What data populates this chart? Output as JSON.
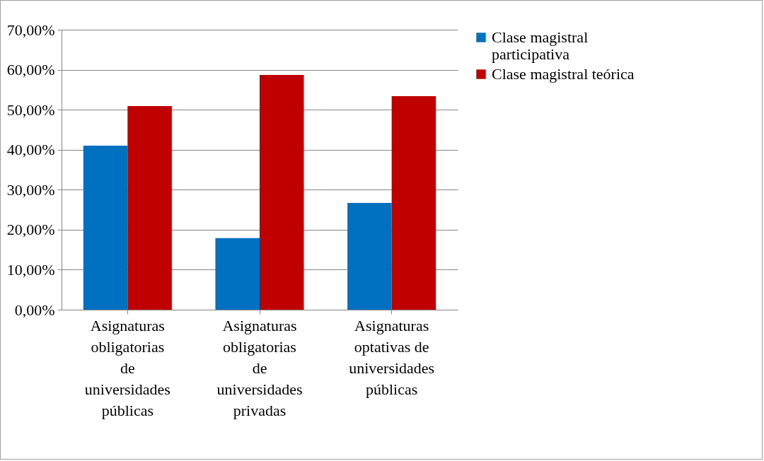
{
  "chart_data": {
    "type": "bar",
    "categories": [
      "Asignaturas obligatorias de universidades públicas",
      "Asignaturas obligatorias de universidades privadas",
      "Asignaturas optativas de universidades públicas"
    ],
    "series": [
      {
        "name": "Clase magistral participativa",
        "color": "#0070c0",
        "values": [
          41.0,
          17.9,
          26.7
        ]
      },
      {
        "name": "Clase magistral teórica",
        "color": "#c00000",
        "values": [
          50.9,
          58.7,
          53.4
        ]
      }
    ],
    "ylim": [
      0,
      70
    ],
    "yticks": [
      {
        "value": 0,
        "label": "0,00%"
      },
      {
        "value": 10,
        "label": "10,00%"
      },
      {
        "value": 20,
        "label": "20,00%"
      },
      {
        "value": 30,
        "label": "30,00%"
      },
      {
        "value": 40,
        "label": "40,00%"
      },
      {
        "value": 50,
        "label": "50,00%"
      },
      {
        "value": 60,
        "label": "60,00%"
      },
      {
        "value": 70,
        "label": "70,00%"
      }
    ],
    "grid": "y",
    "legend": "right"
  }
}
